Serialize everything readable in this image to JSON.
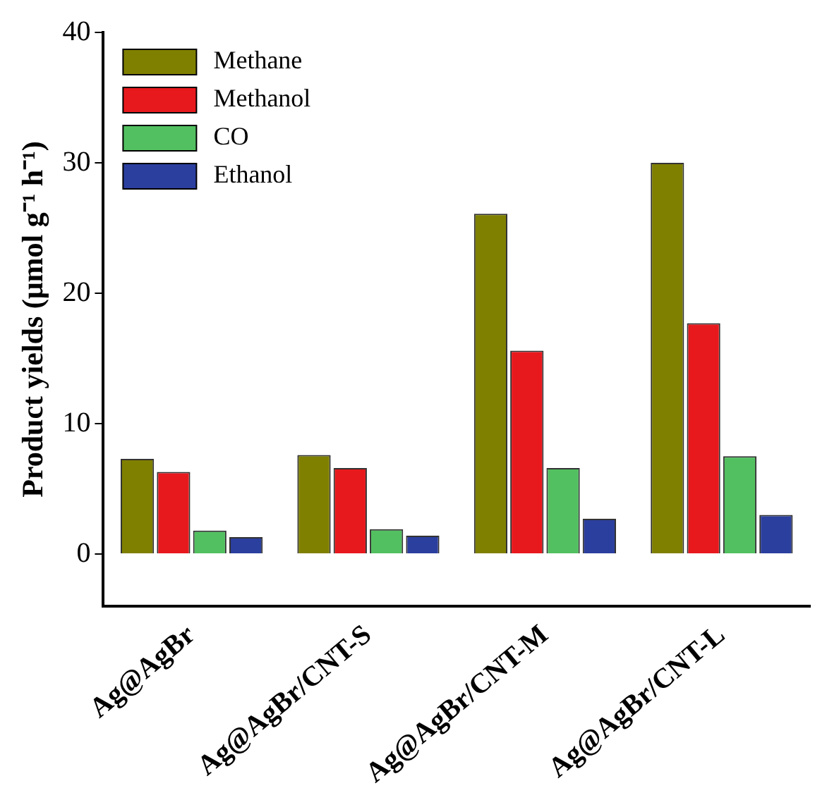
{
  "chart_data": {
    "type": "bar",
    "ylabel": "Product yields (μmol g⁻¹ h⁻¹)",
    "categories": [
      "Ag@AgBr",
      "Ag@AgBr/CNT-S",
      "Ag@AgBr/CNT-M",
      "Ag@AgBr/CNT-L"
    ],
    "series": [
      {
        "name": "Methane",
        "color": "#808000",
        "values": [
          7.3,
          7.6,
          26.1,
          30.0
        ]
      },
      {
        "name": "Methanol",
        "color": "#e8191d",
        "values": [
          6.3,
          6.6,
          15.6,
          17.7
        ]
      },
      {
        "name": "CO",
        "color": "#52c060",
        "values": [
          1.8,
          1.9,
          6.6,
          7.5
        ]
      },
      {
        "name": "Ethanol",
        "color": "#2b3f9e",
        "values": [
          1.3,
          1.4,
          2.7,
          3.0
        ]
      }
    ],
    "ylim": [
      -4,
      40
    ],
    "yticks": [
      0,
      10,
      20,
      30,
      40
    ],
    "legend": "top left",
    "grid": false
  }
}
